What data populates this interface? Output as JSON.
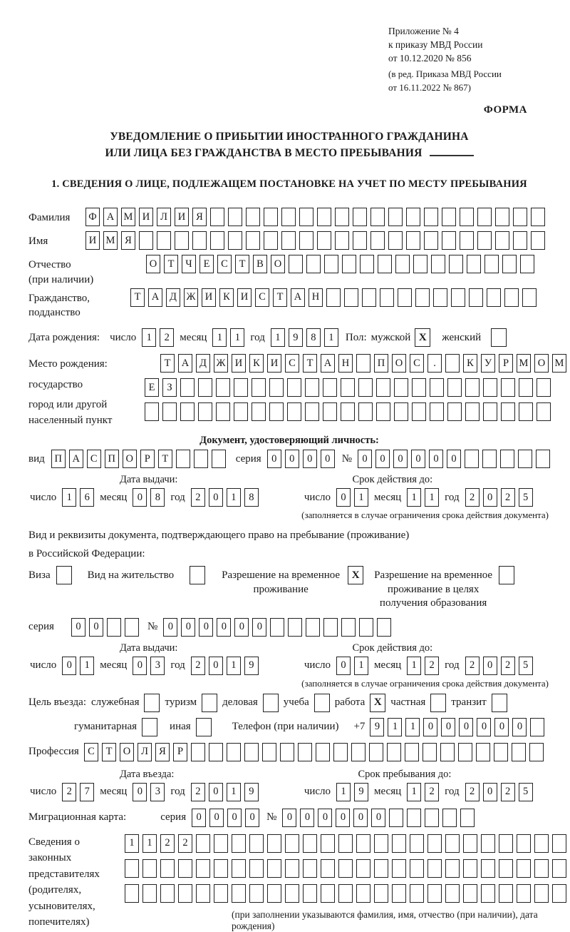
{
  "colors": {
    "text": "#1a1a1a",
    "box_border": "#222222",
    "background": "#ffffff"
  },
  "header": {
    "line1": "Приложение № 4",
    "line2": "к приказу МВД России",
    "line3": "от 10.12.2020 № 856",
    "line4": "(в ред. Приказа МВД России",
    "line5": "от 16.11.2022 № 867)",
    "forma": "ФОРМА"
  },
  "title": {
    "line1": "УВЕДОМЛЕНИЕ О ПРИБЫТИИ ИНОСТРАННОГО ГРАЖДАНИНА",
    "line2": "ИЛИ ЛИЦА БЕЗ ГРАЖДАНСТВА В МЕСТО ПРЕБЫВАНИЯ"
  },
  "section1_heading": "1. СВЕДЕНИЯ О ЛИЦЕ, ПОДЛЕЖАЩЕМ ПОСТАНОВКЕ НА УЧЕТ ПО МЕСТУ ПРЕБЫВАНИЯ",
  "labels": {
    "day": "число",
    "month": "месяц",
    "year": "год",
    "series": "серия",
    "number": "№",
    "issue_date": "Дата выдачи:",
    "valid_until": "Срок действия до:",
    "entry_date": "Дата въезда:",
    "stay_until": "Срок пребывания до:",
    "limit_note": "(заполняется в случае ограничения срока действия документа)"
  },
  "person": {
    "lastname": {
      "label": "Фамилия",
      "value": "ФАМИЛИЯ",
      "cells": 26
    },
    "firstname": {
      "label": "Имя",
      "value": "ИМЯ",
      "cells": 26
    },
    "patronymic": {
      "label1": "Отчество",
      "label2": "(при наличии)",
      "value": "ОТЧЕСТВО",
      "cells": 22
    },
    "citizenship": {
      "label1": "Гражданство,",
      "label2": "подданство",
      "value": "ТАДЖИКИСТАН",
      "cells": 23
    },
    "birth": {
      "label": "Дата рождения:",
      "day": "12",
      "month": "11",
      "year": "1981"
    },
    "sex": {
      "label": "Пол:",
      "male_label": "мужской",
      "male_checked": true,
      "female_label": "женский",
      "female_checked": false
    },
    "birthplace": {
      "label1": "Место рождения:",
      "label2": "государство",
      "label3": "город или другой",
      "label4": "населенный пункт",
      "row1": {
        "value": "ТАДЖИКИСТАН ПОС. КУРМОМБ",
        "cells": 24
      },
      "row2": {
        "value": "ЕЗ",
        "cells": 23
      },
      "row3": {
        "value": "",
        "cells": 23
      }
    }
  },
  "identity_doc": {
    "heading": "Документ, удостоверяющий личность:",
    "kind": {
      "label": "вид",
      "value": "ПАСПОРТ",
      "cells": 10
    },
    "series": {
      "value": "0000",
      "cells": 4
    },
    "number": {
      "value": "000000",
      "cells": 11
    },
    "issue": {
      "day": "16",
      "month": "08",
      "year": "2018"
    },
    "expiry": {
      "day": "01",
      "month": "11",
      "year": "2025"
    }
  },
  "residence_doc": {
    "line1": "Вид и реквизиты документа, подтверждающего право на пребывание (проживание)",
    "line2": "в Российской Федерации:",
    "options": [
      {
        "label": "Виза",
        "checked": false
      },
      {
        "label": "Вид на жительство",
        "checked": false
      },
      {
        "label": "Разрешение на временное проживание",
        "checked": true
      },
      {
        "label": "Разрешение на временное проживание в целях получения образования",
        "checked": false
      }
    ],
    "series": {
      "value": "00",
      "cells": 4
    },
    "number": {
      "value": "000000",
      "cells": 13
    },
    "issue": {
      "day": "01",
      "month": "03",
      "year": "2019"
    },
    "expiry": {
      "day": "01",
      "month": "12",
      "year": "2025"
    }
  },
  "visit": {
    "purpose_label": "Цель въезда:",
    "options_row1": [
      {
        "label": "служебная",
        "checked": false
      },
      {
        "label": "туризм",
        "checked": false
      },
      {
        "label": "деловая",
        "checked": false
      },
      {
        "label": "учеба",
        "checked": false
      },
      {
        "label": "работа",
        "checked": true
      },
      {
        "label": "частная",
        "checked": false
      },
      {
        "label": "транзит",
        "checked": false
      }
    ],
    "options_row2": [
      {
        "label": "гуманитарная",
        "checked": false
      },
      {
        "label": "иная",
        "checked": false
      }
    ],
    "phone": {
      "label": "Телефон (при наличии)",
      "prefix": "+7",
      "value": "911000000",
      "cells": 10
    },
    "profession": {
      "label": "Профессия",
      "value": "СТОЛЯР",
      "cells": 26
    },
    "entry": {
      "day": "27",
      "month": "03",
      "year": "2019"
    },
    "stay": {
      "day": "19",
      "month": "12",
      "year": "2025"
    }
  },
  "migration_card": {
    "label": "Миграционная карта:",
    "series": {
      "value": "0000",
      "cells": 4
    },
    "number": {
      "value": "000000",
      "cells": 11
    }
  },
  "representatives": {
    "label1": "Сведения о",
    "label2": "законных",
    "label3": "представителях",
    "label4": "(родителях,",
    "label5": "усыновителях,",
    "label6": "попечителях)",
    "row1": {
      "value": "1122",
      "cells": 25
    },
    "row2": {
      "value": "",
      "cells": 25
    },
    "row3": {
      "value": "",
      "cells": 25
    },
    "note": "(при заполнении указываются фамилия, имя, отчество (при наличии), дата рождения)"
  }
}
